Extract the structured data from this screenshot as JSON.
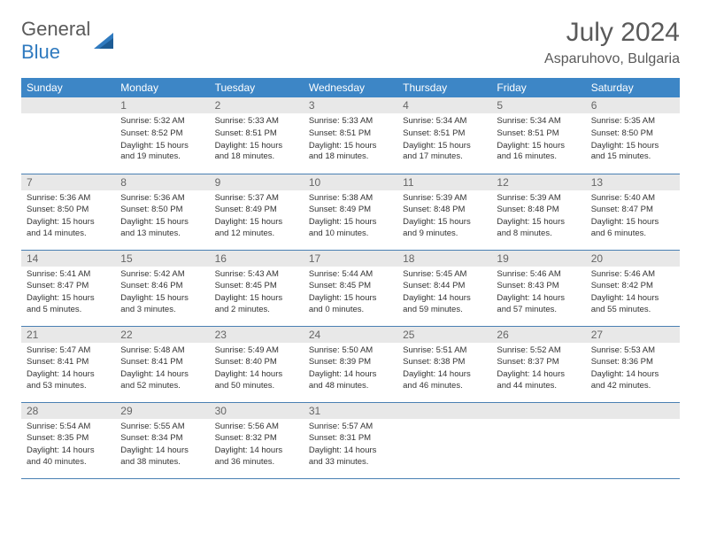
{
  "logo": {
    "general": "General",
    "blue": "Blue"
  },
  "title": {
    "month": "July 2024",
    "location": "Asparuhovo, Bulgaria"
  },
  "colors": {
    "header_bg": "#3d86c6",
    "header_text": "#ffffff",
    "daynum_bg": "#e8e8e8",
    "daynum_text": "#666666",
    "border": "#4a80b3",
    "title_text": "#5a5a5a",
    "logo_blue": "#2f7abf"
  },
  "weekdays": [
    "Sunday",
    "Monday",
    "Tuesday",
    "Wednesday",
    "Thursday",
    "Friday",
    "Saturday"
  ],
  "weeks": [
    [
      null,
      {
        "n": "1",
        "sr": "5:32 AM",
        "ss": "8:52 PM",
        "dl": "15 hours and 19 minutes."
      },
      {
        "n": "2",
        "sr": "5:33 AM",
        "ss": "8:51 PM",
        "dl": "15 hours and 18 minutes."
      },
      {
        "n": "3",
        "sr": "5:33 AM",
        "ss": "8:51 PM",
        "dl": "15 hours and 18 minutes."
      },
      {
        "n": "4",
        "sr": "5:34 AM",
        "ss": "8:51 PM",
        "dl": "15 hours and 17 minutes."
      },
      {
        "n": "5",
        "sr": "5:34 AM",
        "ss": "8:51 PM",
        "dl": "15 hours and 16 minutes."
      },
      {
        "n": "6",
        "sr": "5:35 AM",
        "ss": "8:50 PM",
        "dl": "15 hours and 15 minutes."
      }
    ],
    [
      {
        "n": "7",
        "sr": "5:36 AM",
        "ss": "8:50 PM",
        "dl": "15 hours and 14 minutes."
      },
      {
        "n": "8",
        "sr": "5:36 AM",
        "ss": "8:50 PM",
        "dl": "15 hours and 13 minutes."
      },
      {
        "n": "9",
        "sr": "5:37 AM",
        "ss": "8:49 PM",
        "dl": "15 hours and 12 minutes."
      },
      {
        "n": "10",
        "sr": "5:38 AM",
        "ss": "8:49 PM",
        "dl": "15 hours and 10 minutes."
      },
      {
        "n": "11",
        "sr": "5:39 AM",
        "ss": "8:48 PM",
        "dl": "15 hours and 9 minutes."
      },
      {
        "n": "12",
        "sr": "5:39 AM",
        "ss": "8:48 PM",
        "dl": "15 hours and 8 minutes."
      },
      {
        "n": "13",
        "sr": "5:40 AM",
        "ss": "8:47 PM",
        "dl": "15 hours and 6 minutes."
      }
    ],
    [
      {
        "n": "14",
        "sr": "5:41 AM",
        "ss": "8:47 PM",
        "dl": "15 hours and 5 minutes."
      },
      {
        "n": "15",
        "sr": "5:42 AM",
        "ss": "8:46 PM",
        "dl": "15 hours and 3 minutes."
      },
      {
        "n": "16",
        "sr": "5:43 AM",
        "ss": "8:45 PM",
        "dl": "15 hours and 2 minutes."
      },
      {
        "n": "17",
        "sr": "5:44 AM",
        "ss": "8:45 PM",
        "dl": "15 hours and 0 minutes."
      },
      {
        "n": "18",
        "sr": "5:45 AM",
        "ss": "8:44 PM",
        "dl": "14 hours and 59 minutes."
      },
      {
        "n": "19",
        "sr": "5:46 AM",
        "ss": "8:43 PM",
        "dl": "14 hours and 57 minutes."
      },
      {
        "n": "20",
        "sr": "5:46 AM",
        "ss": "8:42 PM",
        "dl": "14 hours and 55 minutes."
      }
    ],
    [
      {
        "n": "21",
        "sr": "5:47 AM",
        "ss": "8:41 PM",
        "dl": "14 hours and 53 minutes."
      },
      {
        "n": "22",
        "sr": "5:48 AM",
        "ss": "8:41 PM",
        "dl": "14 hours and 52 minutes."
      },
      {
        "n": "23",
        "sr": "5:49 AM",
        "ss": "8:40 PM",
        "dl": "14 hours and 50 minutes."
      },
      {
        "n": "24",
        "sr": "5:50 AM",
        "ss": "8:39 PM",
        "dl": "14 hours and 48 minutes."
      },
      {
        "n": "25",
        "sr": "5:51 AM",
        "ss": "8:38 PM",
        "dl": "14 hours and 46 minutes."
      },
      {
        "n": "26",
        "sr": "5:52 AM",
        "ss": "8:37 PM",
        "dl": "14 hours and 44 minutes."
      },
      {
        "n": "27",
        "sr": "5:53 AM",
        "ss": "8:36 PM",
        "dl": "14 hours and 42 minutes."
      }
    ],
    [
      {
        "n": "28",
        "sr": "5:54 AM",
        "ss": "8:35 PM",
        "dl": "14 hours and 40 minutes."
      },
      {
        "n": "29",
        "sr": "5:55 AM",
        "ss": "8:34 PM",
        "dl": "14 hours and 38 minutes."
      },
      {
        "n": "30",
        "sr": "5:56 AM",
        "ss": "8:32 PM",
        "dl": "14 hours and 36 minutes."
      },
      {
        "n": "31",
        "sr": "5:57 AM",
        "ss": "8:31 PM",
        "dl": "14 hours and 33 minutes."
      },
      null,
      null,
      null
    ]
  ],
  "labels": {
    "sunrise": "Sunrise:",
    "sunset": "Sunset:",
    "daylight": "Daylight:"
  }
}
